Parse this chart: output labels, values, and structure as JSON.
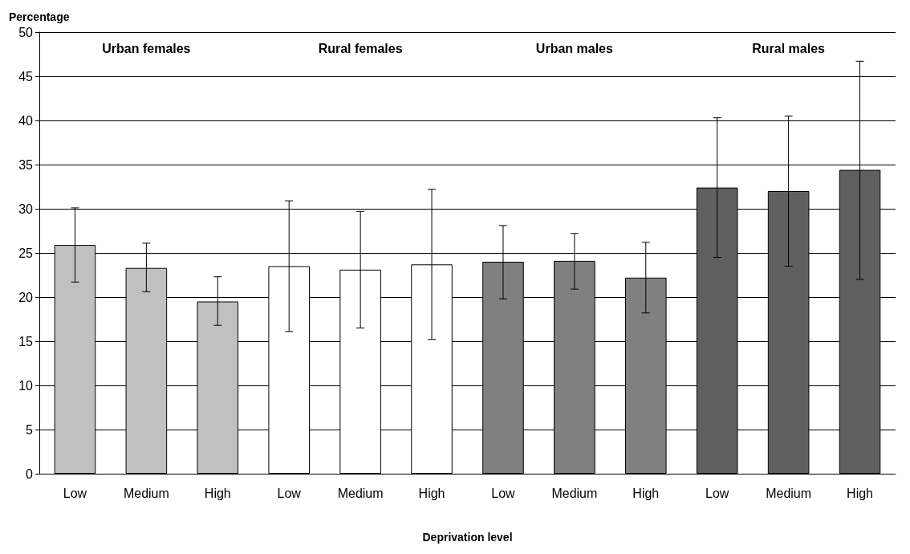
{
  "chart_data": {
    "type": "bar",
    "xlabel": "Deprivation level",
    "ylabel": "Percentage",
    "annotations": [
      "Urban females",
      "Rural females",
      "Urban males",
      "Rural males"
    ],
    "categories": [
      "Low",
      "Medium",
      "High",
      "Low",
      "Medium",
      "High",
      "Low",
      "Medium",
      "High",
      "Low",
      "Medium",
      "High"
    ],
    "series": [
      {
        "color": "#c0c0c0",
        "values": [
          25.9,
          23.3,
          19.5,
          null,
          null,
          null,
          null,
          null,
          null,
          null,
          null,
          null
        ],
        "errors": [
          [
            21.7,
            30.1
          ],
          [
            20.6,
            26.1
          ],
          [
            16.8,
            22.3
          ],
          null,
          null,
          null,
          null,
          null,
          null,
          null,
          null,
          null
        ]
      },
      {
        "color": "#ffffff",
        "values": [
          null,
          null,
          null,
          23.5,
          23.1,
          23.7,
          null,
          null,
          null,
          null,
          null,
          null
        ],
        "errors": [
          null,
          null,
          null,
          [
            16.1,
            30.9
          ],
          [
            16.5,
            29.7
          ],
          [
            15.2,
            32.2
          ],
          null,
          null,
          null,
          null,
          null,
          null
        ]
      },
      {
        "color": "#808080",
        "values": [
          null,
          null,
          null,
          null,
          null,
          null,
          24.0,
          24.1,
          22.2,
          null,
          null,
          null
        ],
        "errors": [
          null,
          null,
          null,
          null,
          null,
          null,
          [
            19.8,
            28.1
          ],
          [
            20.9,
            27.2
          ],
          [
            18.2,
            26.2
          ],
          null,
          null,
          null
        ]
      },
      {
        "color": "#606060",
        "values": [
          null,
          null,
          null,
          null,
          null,
          null,
          null,
          null,
          null,
          32.4,
          32.0,
          34.4
        ],
        "errors": [
          null,
          null,
          null,
          null,
          null,
          null,
          null,
          null,
          null,
          [
            24.5,
            40.3
          ],
          [
            23.5,
            40.5
          ],
          [
            22.0,
            46.7
          ]
        ]
      }
    ],
    "ylim": [
      0,
      50
    ],
    "yticks": [
      0,
      5,
      10,
      15,
      20,
      25,
      30,
      35,
      40,
      45,
      50
    ],
    "grid": "y"
  }
}
